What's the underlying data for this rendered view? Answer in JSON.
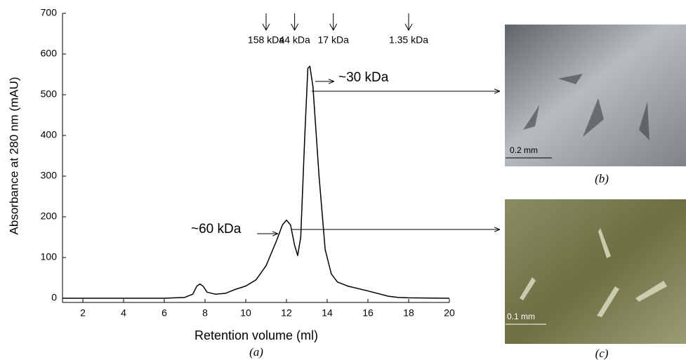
{
  "chart_data": {
    "type": "line",
    "x_label": "Retention volume (ml)",
    "y_label": "Absorbance at 280 nm (mAU)",
    "caption": "(a)",
    "x": [
      1,
      6,
      7,
      7.4,
      7.6,
      7.75,
      7.9,
      8.1,
      8.5,
      9,
      9.5,
      10,
      10.5,
      11,
      11.5,
      11.8,
      12,
      12.2,
      12.4,
      12.55,
      12.7,
      12.9,
      13.05,
      13.15,
      13.3,
      13.6,
      13.9,
      14.2,
      14.5,
      15,
      16,
      17,
      17.5,
      18,
      20
    ],
    "values": [
      0,
      0,
      2,
      10,
      30,
      35,
      30,
      15,
      10,
      12,
      22,
      30,
      45,
      80,
      140,
      180,
      192,
      180,
      130,
      105,
      150,
      400,
      565,
      570,
      520,
      300,
      120,
      60,
      40,
      30,
      18,
      5,
      2,
      1,
      0
    ],
    "color": "#000000",
    "xlim": [
      1,
      20
    ],
    "xticks": [
      2,
      4,
      6,
      8,
      10,
      12,
      14,
      16,
      18,
      20
    ],
    "ylim": [
      0,
      700
    ],
    "yticks": [
      0,
      100,
      200,
      300,
      400,
      500,
      600,
      700
    ],
    "markers": [
      {
        "label": "158 kDa",
        "x": 11
      },
      {
        "label": "44 kDa",
        "x": 12.4
      },
      {
        "label": "17 kDa",
        "x": 14.3
      },
      {
        "label": "1.35 kDa",
        "x": 18
      }
    ],
    "annotations": [
      "~30 kDa",
      "~60 kDa"
    ]
  },
  "panels": [
    {
      "caption": "(b)",
      "scale": "0.2 mm"
    },
    {
      "caption": "(c)",
      "scale": "0.1 mm"
    }
  ]
}
